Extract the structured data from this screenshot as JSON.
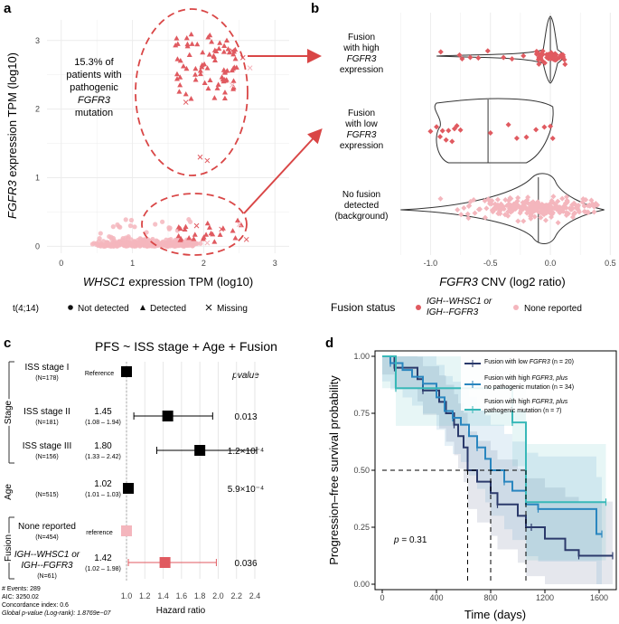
{
  "panel_labels": [
    "a",
    "b",
    "c",
    "d"
  ],
  "chart_data": [
    {
      "type": "scatter",
      "panel": "a",
      "xlabel_italic": "WHSC1",
      "xlabel_rest": " expression TPM (log10)",
      "ylabel_italic": "FGFR3",
      "ylabel_rest": " expression TPM (log10)",
      "xlim": [
        -0.2,
        3.2
      ],
      "ylim": [
        -0.1,
        3.3
      ],
      "xticks": [
        "0",
        "1",
        "2",
        "3"
      ],
      "yticks": [
        "0",
        "1",
        "2",
        "3"
      ],
      "legend": {
        "title": "t(4;14)",
        "items": [
          "Not detected",
          "Detected",
          "Missing"
        ]
      },
      "annotation": [
        "15.3% of",
        "patients with",
        "pathogenic",
        "FGFR3",
        "mutation"
      ],
      "clusters": [
        {
          "name": "Not detected",
          "shape": "circle",
          "x_center": 1.0,
          "y_center": 0.05,
          "count": 289
        },
        {
          "name": "Detected (high FGFR3)",
          "shape": "triangle",
          "x_center": 2.05,
          "y_center": 2.6,
          "count": 75
        },
        {
          "name": "Detected (low FGFR3)",
          "shape": "triangle",
          "x_center": 2.0,
          "y_center": 0.12,
          "count": 24
        }
      ]
    },
    {
      "type": "violin",
      "panel": "b",
      "xlabel_italic": "FGFR3",
      "xlabel_rest": " CNV (log2 ratio)",
      "xlim": [
        -1.35,
        0.55
      ],
      "xticks": [
        "-1.0",
        "-0.5",
        "0.0",
        "0.5"
      ],
      "xtick_values": [
        -1.0,
        -0.5,
        0.0,
        0.5
      ],
      "groups": [
        {
          "label": [
            "Fusion",
            "with high",
            "FGFR3",
            "expression"
          ],
          "median": 0.0
        },
        {
          "label": [
            "Fusion",
            "with low",
            "FGFR3",
            "expression"
          ],
          "median": -0.52
        },
        {
          "label": [
            "No fusion",
            "detected",
            "(background)"
          ],
          "median": -0.1
        }
      ],
      "legend": {
        "title": "Fusion status",
        "items": [
          "IGH--WHSC1 or",
          "IGH--FGFR3",
          "None reported"
        ]
      }
    },
    {
      "type": "forest",
      "panel": "c",
      "title": "PFS ~ ISS stage + Age + Fusion",
      "pvalue_header": "pvalue",
      "xlabel": "Hazard ratio",
      "xticks": [
        "1.0",
        "1.2",
        "1.4",
        "1.6",
        "1.8",
        "2.0",
        "2.2",
        "2.4"
      ],
      "xtick_values": [
        1.0,
        1.2,
        1.4,
        1.6,
        1.8,
        2.0,
        2.2,
        2.4
      ],
      "groups": [
        "Stage",
        "Age",
        "Fusion"
      ],
      "rows": [
        {
          "label": "ISS stage I",
          "n": "(N=178)",
          "hr": 1.0,
          "hr_text": "Reference",
          "ci": "",
          "lo": 1.0,
          "hi": 1.0,
          "p": "",
          "color": "#000000"
        },
        {
          "label": "ISS stage II",
          "n": "(N=181)",
          "hr": 1.45,
          "hr_text": "1.45",
          "ci": "(1.08 – 1.94)",
          "lo": 1.08,
          "hi": 1.94,
          "p": "0.013",
          "color": "#000000"
        },
        {
          "label": "ISS stage III",
          "n": "(N=156)",
          "hr": 1.8,
          "hr_text": "1.80",
          "ci": "(1.33 – 2.42)",
          "lo": 1.33,
          "hi": 2.42,
          "p": "1.2×10⁻⁴",
          "color": "#000000"
        },
        {
          "label": "",
          "n": "(N=515)",
          "hr": 1.02,
          "hr_text": "1.02",
          "ci": "(1.01 – 1.03)",
          "lo": 1.01,
          "hi": 1.03,
          "p": "5.9×10⁻⁴",
          "color": "#000000"
        },
        {
          "label": "None reported",
          "n": "(N=454)",
          "hr": 1.0,
          "hr_text": "reference",
          "ci": "",
          "lo": 1.0,
          "hi": 1.0,
          "p": "",
          "color": "#f4b6bd"
        },
        {
          "label": "IGH--WHSC1 or",
          "label2": "IGH--FGFR3",
          "n": "(N=61)",
          "hr": 1.42,
          "hr_text": "1.42",
          "ci": "(1.02 – 1.98)",
          "lo": 1.02,
          "hi": 1.98,
          "p": "0.036",
          "color": "#e05a60"
        }
      ],
      "footer": [
        "# Events: 289",
        "AIC: 3250.02",
        "Concordance index: 0.6",
        "Global p-value (Log-rank): 1.8769e−07"
      ]
    },
    {
      "type": "line",
      "panel": "d",
      "xlabel": "Time (days)",
      "ylabel": "Progression–free survival probability",
      "xlim": [
        0,
        1700
      ],
      "ylim": [
        0,
        1
      ],
      "xticks": [
        "0",
        "400",
        "800",
        "1200",
        "1600"
      ],
      "xtick_values": [
        0,
        400,
        800,
        1200,
        1600
      ],
      "yticks": [
        "0.00",
        "0.25",
        "0.50",
        "0.75",
        "1.00"
      ],
      "ytick_values": [
        0,
        0.25,
        0.5,
        0.75,
        1.0
      ],
      "pvalue": "p = 0.31",
      "medians": [
        630,
        800,
        1060
      ],
      "series": [
        {
          "name": "Fusion with low FGFR3 (n = 20)",
          "color": "#2b3a6b",
          "x": [
            0,
            90,
            200,
            260,
            300,
            420,
            470,
            530,
            560,
            600,
            630,
            700,
            800,
            850,
            1000,
            1060,
            1100,
            1200,
            1350,
            1450,
            1700
          ],
          "y": [
            1,
            0.95,
            0.95,
            0.9,
            0.85,
            0.8,
            0.75,
            0.7,
            0.65,
            0.6,
            0.5,
            0.45,
            0.4,
            0.35,
            0.3,
            0.25,
            0.25,
            0.2,
            0.15,
            0.125,
            0.125
          ]
        },
        {
          "name": "Fusion with high FGFR3, plus no pathogenic mutation (n = 34)",
          "color": "#2a86bf",
          "x": [
            0,
            60,
            150,
            220,
            300,
            400,
            460,
            520,
            580,
            640,
            700,
            760,
            800,
            900,
            960,
            1060,
            1150,
            1580,
            1620
          ],
          "y": [
            1,
            0.97,
            0.94,
            0.91,
            0.88,
            0.82,
            0.76,
            0.73,
            0.7,
            0.65,
            0.6,
            0.55,
            0.5,
            0.45,
            0.41,
            0.35,
            0.33,
            0.22,
            0.22
          ]
        },
        {
          "name": "Fusion with high FGFR3, plus pathogenic mutation (n = 7)",
          "color": "#38b8b8",
          "x": [
            0,
            100,
            200,
            580,
            960,
            1060,
            1650
          ],
          "y": [
            1,
            0.86,
            0.86,
            0.86,
            0.71,
            0.36,
            0.36
          ]
        }
      ]
    }
  ]
}
